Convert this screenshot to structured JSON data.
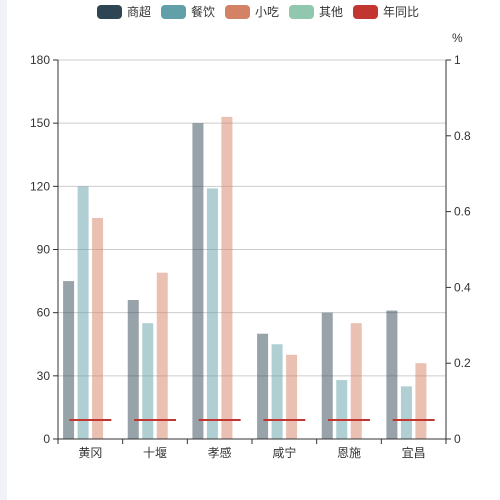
{
  "chart_data": {
    "type": "bar",
    "categories": [
      "黄冈",
      "十堰",
      "孝感",
      "咸宁",
      "恩施",
      "宜昌"
    ],
    "series": [
      {
        "name": "商超",
        "type": "bar",
        "color": "#2f4554",
        "values": [
          75,
          66,
          150,
          50,
          60,
          61
        ]
      },
      {
        "name": "餐饮",
        "type": "bar",
        "color": "#61a0a8",
        "values": [
          120,
          55,
          119,
          45,
          28,
          25
        ]
      },
      {
        "name": "小吃",
        "type": "bar",
        "color": "#d48265",
        "values": [
          105,
          79,
          153,
          40,
          55,
          36
        ]
      },
      {
        "name": "其他",
        "type": "bar",
        "color": "#91c7ae",
        "values": [
          0,
          0,
          0,
          0,
          0,
          0
        ]
      },
      {
        "name": "年同比",
        "type": "line",
        "axis": "right",
        "color": "#c23531",
        "values": [
          0.05,
          0.05,
          0.05,
          0.05,
          0.05,
          0.05
        ]
      }
    ],
    "y_left": {
      "min": 0,
      "max": 180,
      "ticks": [
        0,
        30,
        60,
        90,
        120,
        150,
        180
      ]
    },
    "y_right": {
      "min": 0,
      "max": 1,
      "ticks": [
        0,
        0.2,
        0.4,
        0.6,
        0.8,
        1
      ],
      "label": "%"
    },
    "grid": true,
    "legend_position": "top-center"
  }
}
